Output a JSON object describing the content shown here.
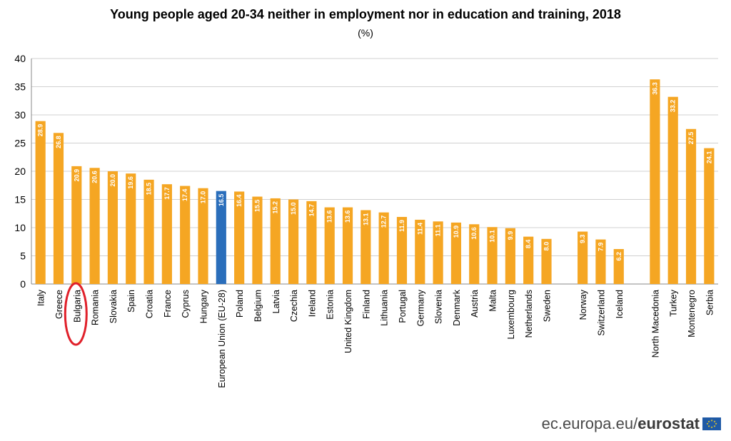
{
  "title": "Young people aged 20-34 neither in employment nor in education and training, 2018",
  "subtitle": "(%)",
  "footer": {
    "site": "ec.europa.eu/",
    "brand": "eurostat",
    "logo_icon": "eu-flag-icon"
  },
  "colors": {
    "bar": "#F5A623",
    "highlight": "#2A6EBB",
    "label": "#ffffff",
    "grid": "#d0d0d0",
    "circle": "#e0202a"
  },
  "chart_data": {
    "type": "bar",
    "ylim": [
      0,
      40
    ],
    "yticks": [
      0,
      5,
      10,
      15,
      20,
      25,
      30,
      35,
      40
    ],
    "grid": true,
    "highlighted_category": "European Union (EU-28)",
    "circled_category": "Bulgaria",
    "categories": [
      "Italy",
      "Greece",
      "Bulgaria",
      "Romania",
      "Slovakia",
      "Spain",
      "Croatia",
      "France",
      "Cyprus",
      "Hungary",
      "European Union (EU-28)",
      "Poland",
      "Belgium",
      "Latvia",
      "Czechia",
      "Ireland",
      "Estonia",
      "United Kingdom",
      "Finland",
      "Lithuania",
      "Portugal",
      "Germany",
      "Slovenia",
      "Denmark",
      "Austria",
      "Malta",
      "Luxembourg",
      "Netherlands",
      "Sweden",
      "",
      "Norway",
      "Switzerland",
      "Iceland",
      "",
      "North Macedonia",
      "Turkey",
      "Montenegro",
      "Serbia"
    ],
    "values": [
      28.9,
      26.8,
      20.9,
      20.6,
      20.0,
      19.6,
      18.5,
      17.7,
      17.4,
      17.0,
      16.5,
      16.4,
      15.5,
      15.2,
      15.0,
      14.7,
      13.6,
      13.6,
      13.1,
      12.7,
      11.9,
      11.4,
      11.1,
      10.9,
      10.6,
      10.1,
      9.9,
      8.4,
      8.0,
      null,
      9.3,
      7.9,
      6.2,
      null,
      36.3,
      33.2,
      27.5,
      24.1
    ],
    "value_labels": [
      "28.9",
      "26.8",
      "20.9",
      "20.6",
      "20.0",
      "19.6",
      "18.5",
      "17.7",
      "17.4",
      "17.0",
      "16.5",
      "16.4",
      "15.5",
      "15.2",
      "15.0",
      "14.7",
      "13.6",
      "13.6",
      "13.1",
      "12.7",
      "11.9",
      "11.4",
      "11.1",
      "10.9",
      "10.6",
      "10.1",
      "9.9",
      "8.4",
      "8.0",
      "",
      "9.3",
      "7.9",
      "6.2",
      "",
      "36.3",
      "33.2",
      "27.5",
      "24.1"
    ]
  }
}
